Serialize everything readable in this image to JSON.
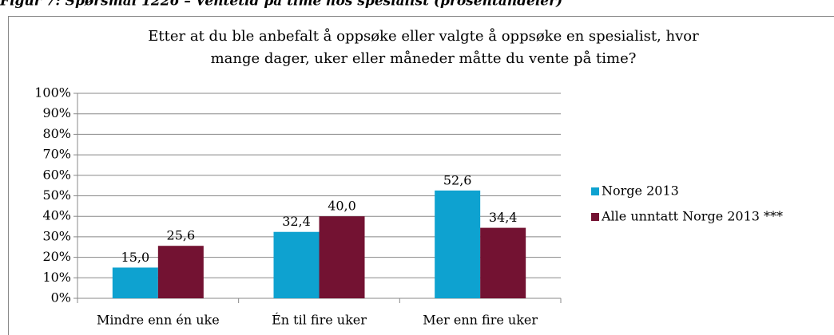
{
  "caption": "Figur 7: Spørsmål 1226 – Ventetid på time hos spesialist (prosentandeler)",
  "chart_data": {
    "type": "bar",
    "title": [
      "Etter at du ble anbefalt å oppsøke eller valgte å oppsøke en spesialist, hvor",
      "mange dager, uker eller måneder måtte du vente på time?"
    ],
    "categories": [
      "Mindre enn én uke",
      "Én til fire uker",
      "Mer enn fire uker"
    ],
    "series": [
      {
        "name": "Norge 2013",
        "color": "#0ea2d0",
        "values": [
          15.0,
          32.4,
          52.6
        ],
        "value_labels": [
          "15,0",
          "32,4",
          "52,6"
        ]
      },
      {
        "name": "Alle unntatt Norge 2013 ***",
        "color": "#731232",
        "values": [
          25.6,
          40.0,
          34.4
        ],
        "value_labels": [
          "25,6",
          "40,0",
          "34,4"
        ]
      }
    ],
    "ylim": [
      0,
      100
    ],
    "yticks": [
      {
        "value": 0,
        "label": "0%"
      },
      {
        "value": 10,
        "label": "10%"
      },
      {
        "value": 20,
        "label": "20%"
      },
      {
        "value": 30,
        "label": "30%"
      },
      {
        "value": 40,
        "label": "40%"
      },
      {
        "value": 50,
        "label": "50%"
      },
      {
        "value": 60,
        "label": "60%"
      },
      {
        "value": 70,
        "label": "70%"
      },
      {
        "value": 80,
        "label": "80%"
      },
      {
        "value": 90,
        "label": "90%"
      },
      {
        "value": 100,
        "label": "100%"
      }
    ],
    "grid": true,
    "legend": "right"
  }
}
